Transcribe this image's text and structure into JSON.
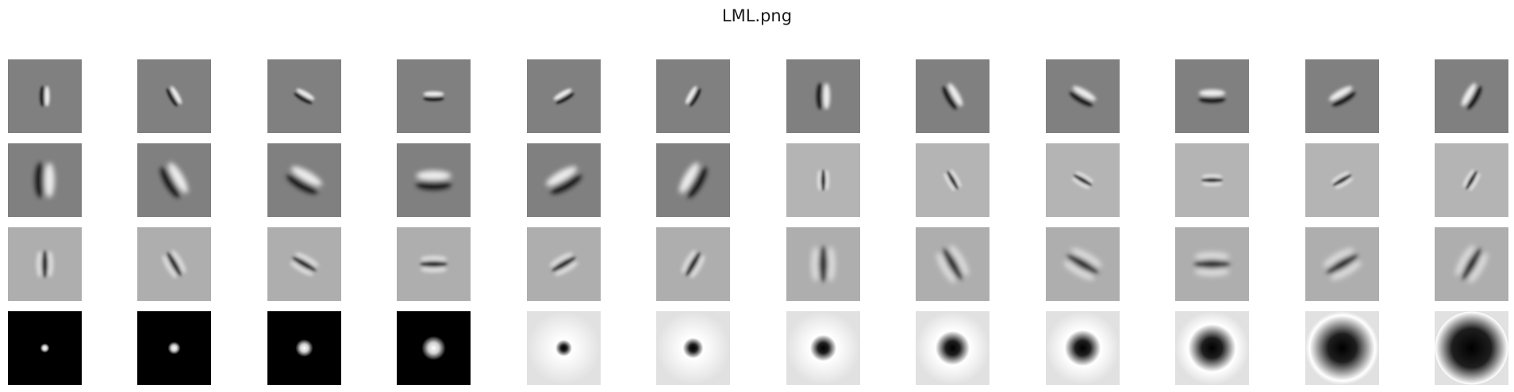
{
  "title": "LML.png",
  "rows": [
    {
      "background": "#808080",
      "filters": [
        {
          "kind": "edge",
          "angle": 0,
          "scale": 1
        },
        {
          "kind": "edge",
          "angle": 30,
          "scale": 1
        },
        {
          "kind": "edge",
          "angle": 60,
          "scale": 1
        },
        {
          "kind": "edge",
          "angle": 90,
          "scale": 1
        },
        {
          "kind": "edge",
          "angle": 120,
          "scale": 1
        },
        {
          "kind": "edge",
          "angle": 150,
          "scale": 1
        },
        {
          "kind": "edge",
          "angle": 0,
          "scale": 1.4
        },
        {
          "kind": "edge",
          "angle": 30,
          "scale": 1.4
        },
        {
          "kind": "edge",
          "angle": 60,
          "scale": 1.4
        },
        {
          "kind": "edge",
          "angle": 90,
          "scale": 1.4
        },
        {
          "kind": "edge",
          "angle": 120,
          "scale": 1.4
        },
        {
          "kind": "edge",
          "angle": 150,
          "scale": 1.4
        }
      ]
    },
    {
      "background": "mixed",
      "filters": [
        {
          "kind": "edge",
          "angle": 0,
          "scale": 2,
          "background": "#808080"
        },
        {
          "kind": "edge",
          "angle": 30,
          "scale": 2,
          "background": "#808080"
        },
        {
          "kind": "edge",
          "angle": 60,
          "scale": 2,
          "background": "#808080"
        },
        {
          "kind": "edge",
          "angle": 90,
          "scale": 2,
          "background": "#808080"
        },
        {
          "kind": "edge",
          "angle": 120,
          "scale": 2,
          "background": "#808080"
        },
        {
          "kind": "edge",
          "angle": 150,
          "scale": 2,
          "background": "#808080"
        },
        {
          "kind": "bar",
          "angle": 0,
          "scale": 1,
          "background": "#b4b4b4"
        },
        {
          "kind": "bar",
          "angle": 30,
          "scale": 1,
          "background": "#b4b4b4"
        },
        {
          "kind": "bar",
          "angle": 60,
          "scale": 1,
          "background": "#b4b4b4"
        },
        {
          "kind": "bar",
          "angle": 90,
          "scale": 1,
          "background": "#b4b4b4"
        },
        {
          "kind": "bar",
          "angle": 120,
          "scale": 1,
          "background": "#b4b4b4"
        },
        {
          "kind": "bar",
          "angle": 150,
          "scale": 1,
          "background": "#b4b4b4"
        }
      ]
    },
    {
      "background": "#aeaeae",
      "filters": [
        {
          "kind": "bar",
          "angle": 0,
          "scale": 1.4
        },
        {
          "kind": "bar",
          "angle": 30,
          "scale": 1.4
        },
        {
          "kind": "bar",
          "angle": 60,
          "scale": 1.4
        },
        {
          "kind": "bar",
          "angle": 90,
          "scale": 1.4
        },
        {
          "kind": "bar",
          "angle": 120,
          "scale": 1.4
        },
        {
          "kind": "bar",
          "angle": 150,
          "scale": 1.4
        },
        {
          "kind": "bar",
          "angle": 0,
          "scale": 2
        },
        {
          "kind": "bar",
          "angle": 30,
          "scale": 2
        },
        {
          "kind": "bar",
          "angle": 60,
          "scale": 2
        },
        {
          "kind": "bar",
          "angle": 90,
          "scale": 2
        },
        {
          "kind": "bar",
          "angle": 120,
          "scale": 2
        },
        {
          "kind": "bar",
          "angle": 150,
          "scale": 2
        }
      ]
    },
    {
      "background": "mixed",
      "filters": [
        {
          "kind": "gaussian",
          "scale": 1
        },
        {
          "kind": "gaussian",
          "scale": 1.4
        },
        {
          "kind": "gaussian",
          "scale": 2
        },
        {
          "kind": "gaussian",
          "scale": 2.8
        },
        {
          "kind": "log",
          "scale": 1
        },
        {
          "kind": "log",
          "scale": 1.4
        },
        {
          "kind": "log",
          "scale": 2
        },
        {
          "kind": "log",
          "scale": 2.8
        },
        {
          "kind": "log",
          "scale": 3
        },
        {
          "kind": "log",
          "scale": 4.2
        },
        {
          "kind": "log",
          "scale": 6
        },
        {
          "kind": "log",
          "scale": 8.5
        }
      ]
    }
  ]
}
